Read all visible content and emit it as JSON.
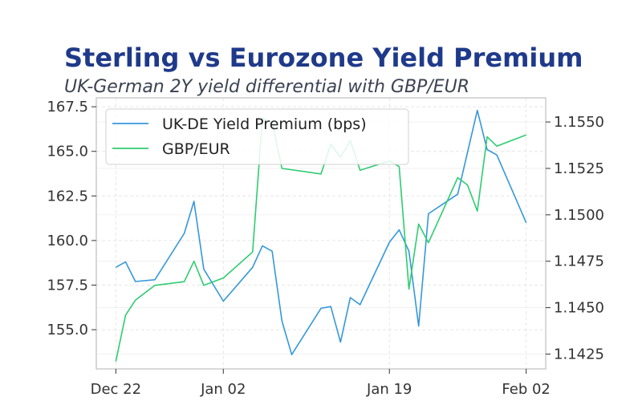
{
  "chart_data": {
    "type": "line",
    "title": "Sterling vs Eurozone Yield Premium",
    "subtitle": "UK-German 2Y yield differential with GBP/EUR",
    "grid": true,
    "legend_position": "top-left",
    "x_ticks": [
      "Dec 22",
      "Jan 02",
      "Jan 19",
      "Feb 02"
    ],
    "y_left": {
      "ticks": [
        "155.0",
        "157.5",
        "160.0",
        "162.5",
        "165.0",
        "167.5"
      ],
      "ylim": [
        152.8,
        168.0
      ]
    },
    "y_right": {
      "ticks": [
        "1.1425",
        "1.1450",
        "1.1475",
        "1.1500",
        "1.1525",
        "1.1550"
      ],
      "ylim": [
        1.1417,
        1.1563
      ]
    },
    "x_range": [
      -2,
      44
    ],
    "series": [
      {
        "name": "UK-DE Yield Premium (bps)",
        "axis": "left",
        "color": "#3498db",
        "points": [
          [
            0,
            158.5
          ],
          [
            1,
            158.8
          ],
          [
            2,
            157.7
          ],
          [
            4,
            157.8
          ],
          [
            7,
            160.4
          ],
          [
            8,
            162.2
          ],
          [
            9,
            158.4
          ],
          [
            11,
            156.6
          ],
          [
            14,
            158.5
          ],
          [
            15,
            159.7
          ],
          [
            16,
            159.4
          ],
          [
            17,
            155.5
          ],
          [
            18,
            153.6
          ],
          [
            21,
            156.2
          ],
          [
            22,
            156.3
          ],
          [
            23,
            154.3
          ],
          [
            24,
            156.8
          ],
          [
            25,
            156.4
          ],
          [
            28,
            159.9
          ],
          [
            29,
            160.6
          ],
          [
            30,
            159.4
          ],
          [
            31,
            155.2
          ],
          [
            32,
            161.5
          ],
          [
            35,
            162.6
          ],
          [
            37,
            167.3
          ],
          [
            38,
            165.1
          ],
          [
            39,
            164.8
          ],
          [
            42,
            161.0
          ]
        ]
      },
      {
        "name": "GBP/EUR",
        "axis": "right",
        "color": "#2ecc71",
        "points": [
          [
            0,
            1.1421
          ],
          [
            1,
            1.1446
          ],
          [
            2,
            1.1454
          ],
          [
            4,
            1.1462
          ],
          [
            7,
            1.1464
          ],
          [
            8,
            1.1475
          ],
          [
            9,
            1.1462
          ],
          [
            11,
            1.1466
          ],
          [
            14,
            1.148
          ],
          [
            15,
            1.1552
          ],
          [
            16,
            1.155
          ],
          [
            17,
            1.1525
          ],
          [
            21,
            1.1522
          ],
          [
            22,
            1.1538
          ],
          [
            23,
            1.1531
          ],
          [
            24,
            1.154
          ],
          [
            25,
            1.1524
          ],
          [
            28,
            1.1529
          ],
          [
            29,
            1.1526
          ],
          [
            30,
            1.146
          ],
          [
            31,
            1.1495
          ],
          [
            32,
            1.1485
          ],
          [
            35,
            1.152
          ],
          [
            36,
            1.1516
          ],
          [
            37,
            1.1502
          ],
          [
            38,
            1.1542
          ],
          [
            39,
            1.1537
          ],
          [
            42,
            1.1543
          ]
        ]
      }
    ]
  }
}
